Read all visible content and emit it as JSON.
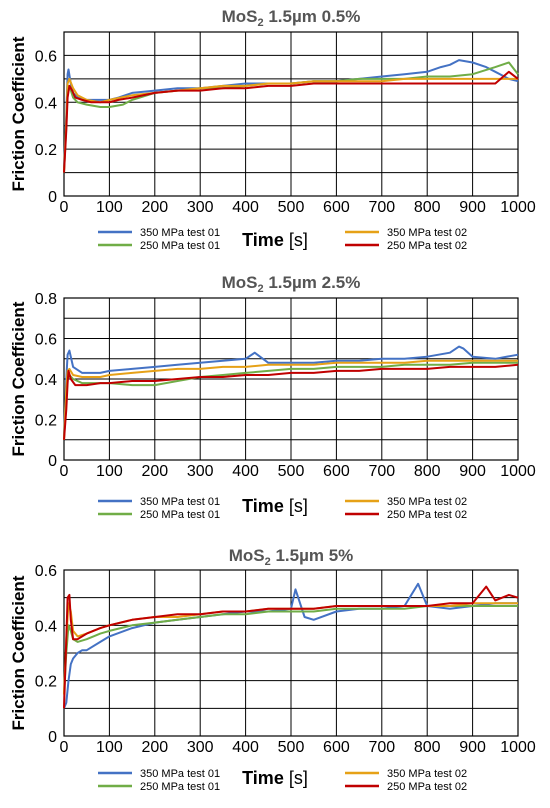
{
  "chart_data": [
    {
      "type": "line",
      "title": "MoS",
      "title_sub": "2",
      "title_rest": " 1.5µm 0.5%",
      "xlabel": "Time",
      "xunit": "[s]",
      "ylabel": "Friction Coefficient",
      "xlim": [
        0,
        1000
      ],
      "ylim": [
        0,
        0.7
      ],
      "xticks": [
        "0",
        "100",
        "200",
        "300",
        "400",
        "500",
        "600",
        "700",
        "800",
        "900",
        "1000"
      ],
      "yticks": [
        "0",
        "0.2",
        "0.4",
        "0.6"
      ],
      "ytick_values": [
        0,
        0.2,
        0.4,
        0.6
      ],
      "grid": true,
      "legend_position": "bottom",
      "series": [
        {
          "name": "350 MPa test 01",
          "color": "#4472c4",
          "x": [
            0,
            5,
            8,
            10,
            15,
            20,
            30,
            50,
            80,
            100,
            120,
            150,
            200,
            250,
            300,
            350,
            400,
            450,
            500,
            550,
            600,
            650,
            700,
            750,
            800,
            830,
            850,
            870,
            900,
            930,
            950,
            980,
            1000
          ],
          "values": [
            0.12,
            0.35,
            0.52,
            0.54,
            0.48,
            0.44,
            0.42,
            0.41,
            0.41,
            0.41,
            0.42,
            0.44,
            0.45,
            0.46,
            0.46,
            0.47,
            0.48,
            0.48,
            0.48,
            0.49,
            0.49,
            0.5,
            0.51,
            0.52,
            0.53,
            0.55,
            0.56,
            0.58,
            0.57,
            0.55,
            0.53,
            0.5,
            0.49
          ]
        },
        {
          "name": "250 MPa test 01",
          "color": "#70ad47",
          "x": [
            0,
            5,
            8,
            12,
            20,
            30,
            50,
            80,
            100,
            130,
            150,
            200,
            250,
            300,
            350,
            400,
            450,
            500,
            550,
            600,
            650,
            700,
            750,
            800,
            850,
            900,
            950,
            980,
            1000
          ],
          "values": [
            0.1,
            0.3,
            0.45,
            0.47,
            0.42,
            0.4,
            0.39,
            0.38,
            0.38,
            0.39,
            0.41,
            0.44,
            0.45,
            0.46,
            0.46,
            0.47,
            0.48,
            0.48,
            0.49,
            0.49,
            0.5,
            0.5,
            0.5,
            0.51,
            0.51,
            0.52,
            0.55,
            0.57,
            0.52
          ]
        },
        {
          "name": "350 MPa test 02",
          "color": "#e6a117",
          "x": [
            0,
            5,
            8,
            12,
            20,
            30,
            50,
            80,
            100,
            150,
            200,
            250,
            300,
            350,
            400,
            450,
            500,
            550,
            600,
            650,
            700,
            750,
            800,
            850,
            900,
            950,
            1000
          ],
          "values": [
            0.1,
            0.32,
            0.48,
            0.5,
            0.46,
            0.43,
            0.41,
            0.4,
            0.41,
            0.43,
            0.44,
            0.45,
            0.46,
            0.47,
            0.47,
            0.48,
            0.48,
            0.49,
            0.49,
            0.49,
            0.49,
            0.5,
            0.5,
            0.5,
            0.5,
            0.5,
            0.5
          ]
        },
        {
          "name": "250 MPa test 02",
          "color": "#c00000",
          "x": [
            0,
            5,
            8,
            12,
            18,
            25,
            40,
            60,
            80,
            100,
            120,
            150,
            200,
            250,
            300,
            350,
            400,
            450,
            500,
            550,
            600,
            650,
            700,
            750,
            800,
            850,
            900,
            950,
            980,
            1000
          ],
          "values": [
            0.1,
            0.28,
            0.42,
            0.47,
            0.45,
            0.42,
            0.41,
            0.4,
            0.4,
            0.4,
            0.41,
            0.42,
            0.44,
            0.45,
            0.45,
            0.46,
            0.46,
            0.47,
            0.47,
            0.48,
            0.48,
            0.48,
            0.48,
            0.48,
            0.48,
            0.48,
            0.48,
            0.48,
            0.53,
            0.5
          ]
        }
      ]
    },
    {
      "type": "line",
      "title": "MoS",
      "title_sub": "2",
      "title_rest": " 1.5µm 2.5%",
      "xlabel": "Time",
      "xunit": "[s]",
      "ylabel": "Friction Coefficient",
      "xlim": [
        0,
        1000
      ],
      "ylim": [
        0,
        0.8
      ],
      "xticks": [
        "0",
        "100",
        "200",
        "300",
        "400",
        "500",
        "600",
        "700",
        "800",
        "900",
        "1000"
      ],
      "yticks": [
        "0",
        "0.2",
        "0.4",
        "0.6",
        "0.8"
      ],
      "ytick_values": [
        0,
        0.2,
        0.4,
        0.6,
        0.8
      ],
      "grid": true,
      "legend_position": "bottom",
      "series": [
        {
          "name": "350 MPa test 01",
          "color": "#4472c4",
          "x": [
            0,
            5,
            8,
            12,
            20,
            40,
            80,
            100,
            150,
            200,
            250,
            300,
            350,
            400,
            420,
            450,
            500,
            550,
            600,
            650,
            700,
            750,
            800,
            850,
            870,
            880,
            900,
            950,
            1000
          ],
          "values": [
            0.12,
            0.4,
            0.52,
            0.54,
            0.46,
            0.43,
            0.43,
            0.44,
            0.45,
            0.46,
            0.47,
            0.48,
            0.49,
            0.5,
            0.53,
            0.48,
            0.48,
            0.48,
            0.49,
            0.49,
            0.5,
            0.5,
            0.51,
            0.53,
            0.56,
            0.55,
            0.51,
            0.5,
            0.52
          ]
        },
        {
          "name": "250 MPa test 01",
          "color": "#70ad47",
          "x": [
            0,
            5,
            8,
            12,
            20,
            40,
            80,
            100,
            150,
            200,
            250,
            300,
            350,
            400,
            450,
            500,
            550,
            600,
            650,
            700,
            750,
            800,
            850,
            900,
            950,
            1000
          ],
          "values": [
            0.1,
            0.3,
            0.4,
            0.42,
            0.4,
            0.38,
            0.38,
            0.38,
            0.37,
            0.37,
            0.39,
            0.41,
            0.42,
            0.43,
            0.44,
            0.45,
            0.45,
            0.46,
            0.46,
            0.46,
            0.47,
            0.47,
            0.47,
            0.48,
            0.48,
            0.48
          ]
        },
        {
          "name": "350 MPa test 02",
          "color": "#e6a117",
          "x": [
            0,
            5,
            8,
            12,
            20,
            40,
            80,
            100,
            150,
            200,
            250,
            300,
            350,
            400,
            450,
            500,
            550,
            600,
            650,
            700,
            750,
            800,
            850,
            900,
            950,
            1000
          ],
          "values": [
            0.1,
            0.35,
            0.44,
            0.45,
            0.42,
            0.41,
            0.41,
            0.42,
            0.43,
            0.44,
            0.45,
            0.45,
            0.46,
            0.46,
            0.47,
            0.47,
            0.47,
            0.48,
            0.48,
            0.48,
            0.48,
            0.49,
            0.49,
            0.49,
            0.49,
            0.49
          ]
        },
        {
          "name": "250 MPa test 02",
          "color": "#c00000",
          "x": [
            0,
            5,
            8,
            10,
            15,
            25,
            50,
            80,
            100,
            150,
            200,
            250,
            300,
            350,
            400,
            450,
            500,
            550,
            600,
            650,
            700,
            750,
            800,
            850,
            900,
            950,
            1000
          ],
          "values": [
            0.1,
            0.25,
            0.38,
            0.44,
            0.4,
            0.37,
            0.37,
            0.38,
            0.38,
            0.39,
            0.39,
            0.4,
            0.41,
            0.41,
            0.42,
            0.42,
            0.43,
            0.43,
            0.44,
            0.44,
            0.45,
            0.45,
            0.45,
            0.46,
            0.46,
            0.46,
            0.47
          ]
        }
      ]
    },
    {
      "type": "line",
      "title": "MoS",
      "title_sub": "2",
      "title_rest": " 1.5µm 5%",
      "xlabel": "Time",
      "xunit": "[s]",
      "ylabel": "Friction Coefficient",
      "xlim": [
        0,
        1000
      ],
      "ylim": [
        0,
        0.6
      ],
      "xticks": [
        "0",
        "100",
        "200",
        "300",
        "400",
        "500",
        "600",
        "700",
        "800",
        "900",
        "1000"
      ],
      "yticks": [
        "0",
        "0.2",
        "0.4",
        "0.6"
      ],
      "ytick_values": [
        0,
        0.2,
        0.4,
        0.6
      ],
      "grid": true,
      "legend_position": "bottom",
      "series": [
        {
          "name": "350 MPa test 01",
          "color": "#4472c4",
          "x": [
            0,
            5,
            10,
            15,
            20,
            30,
            40,
            50,
            80,
            100,
            150,
            200,
            250,
            300,
            350,
            400,
            450,
            500,
            510,
            530,
            550,
            600,
            650,
            700,
            750,
            780,
            800,
            850,
            900,
            950,
            1000
          ],
          "values": [
            0.1,
            0.12,
            0.2,
            0.26,
            0.28,
            0.3,
            0.31,
            0.31,
            0.34,
            0.36,
            0.39,
            0.41,
            0.42,
            0.43,
            0.44,
            0.45,
            0.45,
            0.46,
            0.53,
            0.43,
            0.42,
            0.45,
            0.46,
            0.46,
            0.47,
            0.55,
            0.47,
            0.46,
            0.47,
            0.48,
            0.48
          ]
        },
        {
          "name": "250 MPa test 01",
          "color": "#70ad47",
          "x": [
            0,
            5,
            10,
            15,
            20,
            30,
            50,
            80,
            100,
            150,
            200,
            250,
            300,
            350,
            400,
            450,
            500,
            550,
            600,
            650,
            700,
            750,
            800,
            850,
            900,
            950,
            1000
          ],
          "values": [
            0.15,
            0.3,
            0.4,
            0.38,
            0.35,
            0.34,
            0.35,
            0.37,
            0.38,
            0.4,
            0.41,
            0.42,
            0.43,
            0.44,
            0.44,
            0.45,
            0.45,
            0.45,
            0.46,
            0.46,
            0.46,
            0.46,
            0.47,
            0.47,
            0.47,
            0.47,
            0.47
          ]
        },
        {
          "name": "350 MPa test 02",
          "color": "#e6a117",
          "x": [
            0,
            5,
            10,
            15,
            20,
            30,
            50,
            80,
            100,
            150,
            200,
            250,
            300,
            350,
            400,
            450,
            500,
            550,
            600,
            650,
            700,
            750,
            800,
            850,
            900,
            950,
            1000
          ],
          "values": [
            0.15,
            0.35,
            0.48,
            0.45,
            0.38,
            0.36,
            0.37,
            0.39,
            0.4,
            0.42,
            0.43,
            0.43,
            0.44,
            0.45,
            0.45,
            0.46,
            0.46,
            0.46,
            0.47,
            0.47,
            0.47,
            0.47,
            0.47,
            0.47,
            0.48,
            0.48,
            0.48
          ]
        },
        {
          "name": "250 MPa test 02",
          "color": "#c00000",
          "x": [
            0,
            5,
            8,
            12,
            15,
            20,
            30,
            50,
            80,
            100,
            150,
            200,
            250,
            300,
            350,
            400,
            450,
            500,
            550,
            600,
            650,
            700,
            750,
            800,
            850,
            900,
            930,
            950,
            980,
            1000
          ],
          "values": [
            0.1,
            0.35,
            0.5,
            0.51,
            0.42,
            0.35,
            0.35,
            0.37,
            0.39,
            0.4,
            0.42,
            0.43,
            0.44,
            0.44,
            0.45,
            0.45,
            0.46,
            0.46,
            0.46,
            0.47,
            0.47,
            0.47,
            0.47,
            0.47,
            0.48,
            0.48,
            0.54,
            0.49,
            0.51,
            0.5
          ]
        }
      ]
    }
  ]
}
